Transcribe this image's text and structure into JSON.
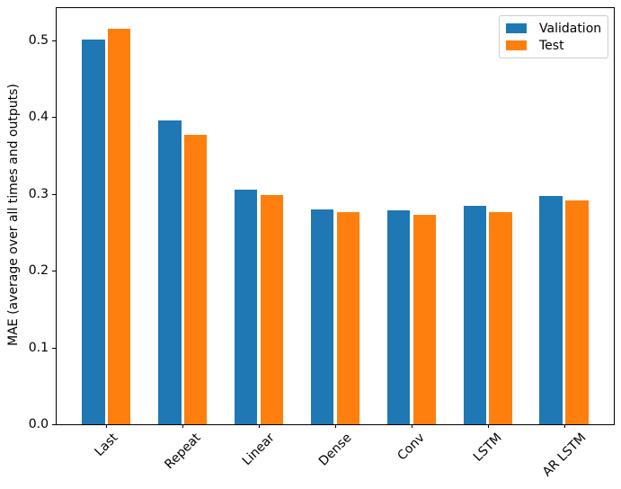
{
  "chart_data": {
    "type": "bar",
    "title": "",
    "xlabel": "",
    "ylabel": "MAE (average over all times and outputs)",
    "categories": [
      "Last",
      "Repeat",
      "Linear",
      "Dense",
      "Conv",
      "LSTM",
      "AR LSTM"
    ],
    "series": [
      {
        "name": "Validation",
        "color": "#1f77b4",
        "values": [
          0.501,
          0.396,
          0.305,
          0.28,
          0.279,
          0.285,
          0.297
        ]
      },
      {
        "name": "Test",
        "color": "#ff7f0e",
        "values": [
          0.515,
          0.377,
          0.298,
          0.276,
          0.273,
          0.276,
          0.291
        ]
      }
    ],
    "y_ticks": [
      0.0,
      0.1,
      0.2,
      0.3,
      0.4,
      0.5
    ],
    "y_tick_labels": [
      "0.0",
      "0.1",
      "0.2",
      "0.3",
      "0.4",
      "0.5"
    ],
    "ylim": [
      0,
      0.542
    ],
    "xlim": [
      -0.652,
      6.652
    ],
    "bar_width": 0.3,
    "bar_offset": 0.17,
    "x_tick_rotation": 45,
    "grid": false,
    "legend_position": "upper right",
    "axis_color": "#000000"
  }
}
